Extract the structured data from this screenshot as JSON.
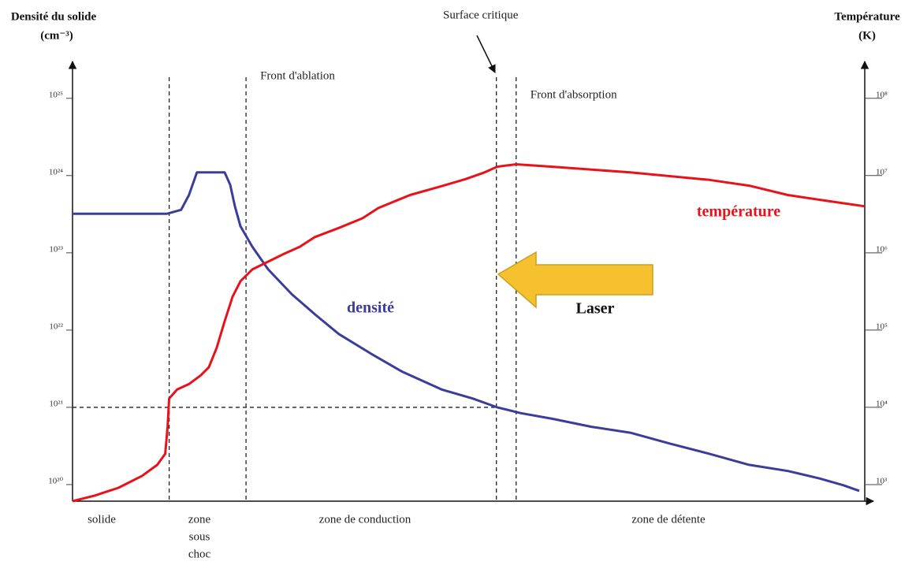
{
  "chart_data": {
    "type": "line",
    "y_axis_title": [
      "Densité du solide",
      "(cm⁻³)"
    ],
    "y2_axis_title": [
      "Température",
      "(K)"
    ],
    "log_scale": true,
    "xlim": [
      0,
      100
    ],
    "ylim": [
      6.1e+19,
      3e+25
    ],
    "y2lim": [
      610,
      300000000.0
    ],
    "yticks": [
      {
        "value": 1e+20,
        "label": "10²⁰"
      },
      {
        "value": 1e+21,
        "label": "10²¹"
      },
      {
        "value": 1e+22,
        "label": "10²²"
      },
      {
        "value": 1e+23,
        "label": "10²³"
      },
      {
        "value": 1e+24,
        "label": "10²⁴"
      },
      {
        "value": 1e+25,
        "label": "10²⁵"
      }
    ],
    "y2ticks": [
      {
        "value": 1000,
        "label": "10³"
      },
      {
        "value": 10000,
        "label": "10⁴"
      },
      {
        "value": 100000,
        "label": "10⁵"
      },
      {
        "value": 1000000,
        "label": "10⁶"
      },
      {
        "value": 10000000,
        "label": "10⁷"
      },
      {
        "value": 100000000,
        "label": "10⁸"
      }
    ],
    "boundaries": [
      {
        "x": 12.2
      },
      {
        "x": 21.9,
        "label": "Front d'ablation"
      },
      {
        "x": 53.5,
        "label": "Surface critique"
      },
      {
        "x": 56.0,
        "label": "Front d'absorption"
      }
    ],
    "critical_density": 1e+21,
    "zones": [
      [
        "solide"
      ],
      [
        "zone",
        "sous",
        "choc"
      ],
      [
        "zone de conduction"
      ],
      [
        "zone de détente"
      ]
    ],
    "laser_label": "Laser",
    "laser_color": "#f5c12e",
    "series": [
      {
        "name": "densité",
        "color": "#3b3d9b",
        "x": [
          0,
          11.9,
          13.7,
          14.7,
          15.7,
          16.9,
          19.2,
          19.9,
          20.5,
          21.2,
          22.7,
          24.7,
          27.7,
          30.6,
          33.6,
          37.6,
          41.6,
          46.6,
          50.5,
          53.6,
          56.6,
          60.6,
          65.5,
          70.4,
          75.4,
          80.4,
          85.4,
          90.3,
          94.3,
          97.3,
          99.3
        ],
        "values": [
          3.2e+23,
          3.2e+23,
          3.6e+23,
          5.6e+23,
          1.1e+24,
          1.1e+24,
          1.1e+24,
          7.6e+23,
          4e+23,
          2.2e+23,
          1.2e+23,
          6.1e+22,
          2.9e+22,
          1.6e+22,
          8.9e+21,
          5e+21,
          2.9e+21,
          1.7e+21,
          1.3e+21,
          1e+21,
          8.4e+20,
          7.1e+20,
          5.6e+20,
          4.7e+20,
          3.4e+20,
          2.5e+20,
          1.8e+20,
          1.5e+20,
          1.2e+20,
          9.8e+19,
          8.3e+19
        ]
      },
      {
        "name": "température",
        "color": "#e8121a",
        "axis": "y2",
        "x": [
          0,
          2.8,
          5.8,
          8.8,
          10.7,
          11.7,
          12.0,
          12.2,
          13.2,
          14.7,
          16.2,
          17.2,
          18.2,
          19.2,
          20.2,
          21.2,
          22.7,
          24.7,
          26.7,
          28.7,
          30.6,
          33.6,
          36.6,
          38.6,
          42.6,
          46.6,
          49.6,
          52.0,
          53.6,
          56.0,
          60.6,
          70.4,
          80.4,
          85.4,
          90.3,
          95.3,
          100
        ],
        "values": [
          610,
          720,
          910,
          1300,
          1800,
          2500,
          5600,
          13000,
          17000,
          20000,
          26000,
          33000,
          59000,
          130000,
          270000,
          430000,
          610000,
          770000,
          970000,
          1200000,
          1600000,
          2100000,
          2800000,
          3800000,
          5600000,
          7300000,
          9000000,
          11000000,
          13000000,
          14000000,
          13000000,
          11000000,
          8800000,
          7400000,
          5600000,
          4700000,
          4000000
        ]
      }
    ]
  }
}
